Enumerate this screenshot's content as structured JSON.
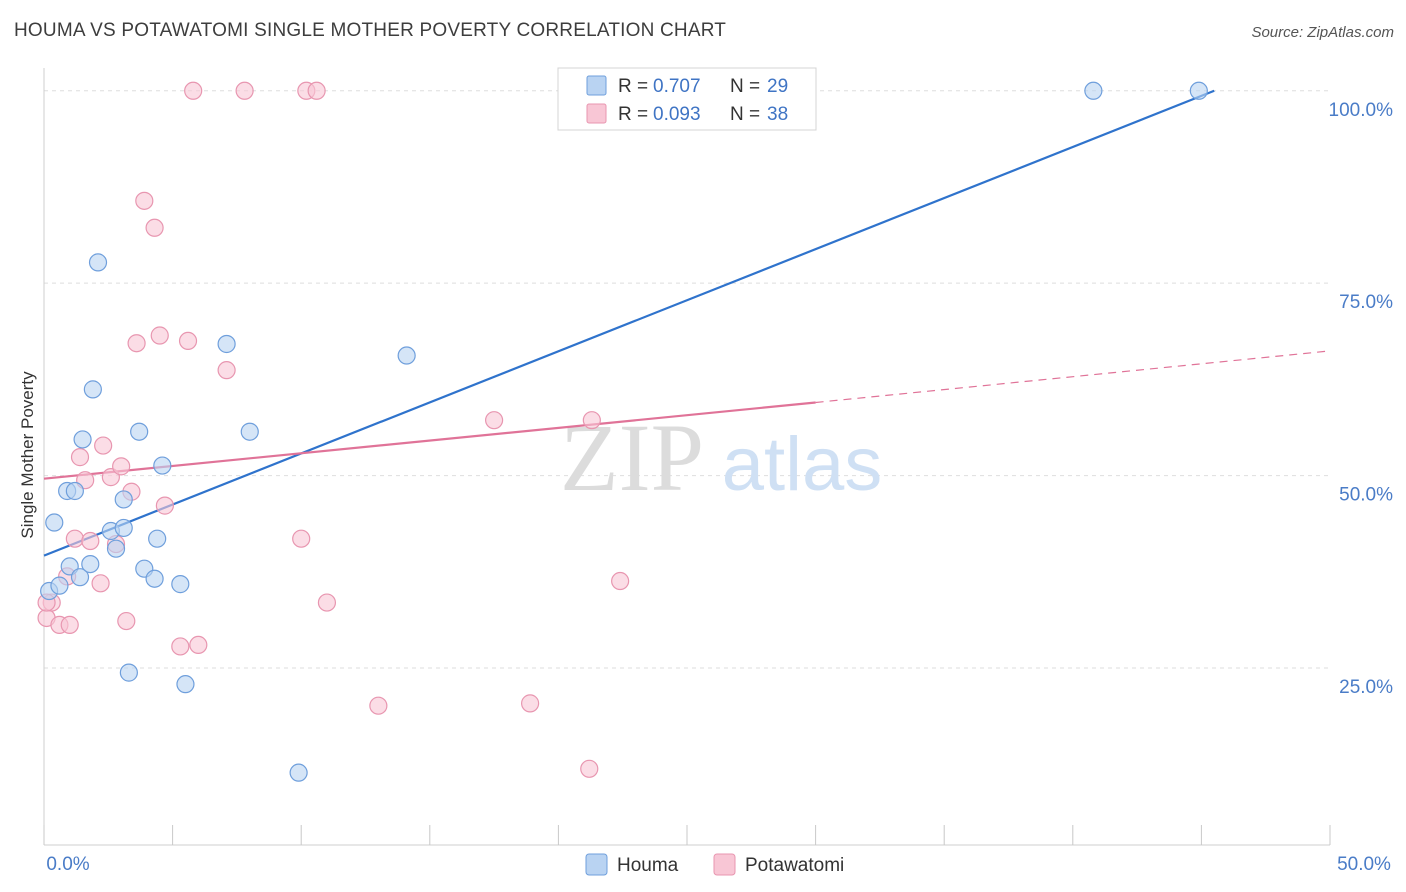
{
  "header": {
    "title": "HOUMA VS POTAWATOMI SINGLE MOTHER POVERTY CORRELATION CHART",
    "source": "Source: ZipAtlas.com"
  },
  "watermark": {
    "zip": "ZIP",
    "atlas": "atlas"
  },
  "colors": {
    "houma_fill": "#b9d3f2",
    "houma_stroke": "#6f9fdc",
    "houma_line": "#2f73cc",
    "potawatomi_fill": "#f8c6d5",
    "potawatomi_stroke": "#e896b0",
    "potawatomi_line": "#e07398"
  },
  "legend_top": {
    "rows": [
      {
        "r_label": "R =",
        "r_value": "0.707",
        "n_label": "N =",
        "n_value": "29"
      },
      {
        "r_label": "R =",
        "r_value": "0.093",
        "n_label": "N =",
        "n_value": "38"
      }
    ]
  },
  "legend_bottom": {
    "items": [
      "Houma",
      "Potawatomi"
    ]
  },
  "chart_data": {
    "type": "scatter",
    "title": "HOUMA VS POTAWATOMI SINGLE MOTHER POVERTY CORRELATION CHART",
    "xlabel": "",
    "ylabel": "Single Mother Poverty",
    "xlim": [
      0,
      50
    ],
    "ylim": [
      2,
      104
    ],
    "x_tick_labels": [
      "0.0%",
      "50.0%"
    ],
    "y_ticks": [
      25,
      50,
      75,
      100
    ],
    "y_tick_labels": [
      "25.0%",
      "50.0%",
      "75.0%",
      "100.0%"
    ],
    "grid": true,
    "legend_placement": "top-center",
    "series": [
      {
        "name": "Houma",
        "points": [
          [
            0.2,
            35
          ],
          [
            0.4,
            43.9
          ],
          [
            0.6,
            35.7
          ],
          [
            0.9,
            48
          ],
          [
            1.0,
            38.2
          ],
          [
            1.2,
            48
          ],
          [
            1.4,
            36.8
          ],
          [
            1.5,
            54.7
          ],
          [
            1.8,
            38.5
          ],
          [
            1.9,
            61.2
          ],
          [
            2.1,
            77.7
          ],
          [
            2.6,
            42.8
          ],
          [
            2.8,
            40.5
          ],
          [
            3.1,
            46.9
          ],
          [
            3.1,
            43.2
          ],
          [
            3.3,
            24.4
          ],
          [
            3.7,
            55.7
          ],
          [
            3.9,
            37.9
          ],
          [
            4.3,
            36.6
          ],
          [
            4.4,
            41.8
          ],
          [
            4.6,
            51.3
          ],
          [
            5.3,
            35.9
          ],
          [
            5.5,
            22.9
          ],
          [
            7.1,
            67.1
          ],
          [
            8.0,
            55.7
          ],
          [
            9.9,
            11.4
          ],
          [
            14.1,
            65.6
          ],
          [
            40.8,
            100
          ],
          [
            44.9,
            100
          ]
        ],
        "trend": {
          "x": [
            0,
            45.5
          ],
          "y": [
            39.6,
            100
          ],
          "dashed_to": null
        }
      },
      {
        "name": "Potawatomi",
        "points": [
          [
            0.1,
            31.5
          ],
          [
            0.3,
            33.5
          ],
          [
            0.6,
            30.6
          ],
          [
            0.9,
            36.9
          ],
          [
            1.0,
            30.6
          ],
          [
            1.2,
            41.8
          ],
          [
            1.4,
            52.4
          ],
          [
            1.6,
            49.4
          ],
          [
            1.8,
            41.5
          ],
          [
            2.2,
            36
          ],
          [
            2.3,
            53.9
          ],
          [
            2.6,
            49.8
          ],
          [
            2.8,
            41.1
          ],
          [
            3.0,
            51.2
          ],
          [
            3.2,
            31.1
          ],
          [
            3.4,
            47.9
          ],
          [
            3.6,
            67.2
          ],
          [
            3.9,
            85.7
          ],
          [
            4.3,
            82.2
          ],
          [
            4.7,
            46.1
          ],
          [
            4.5,
            68.2
          ],
          [
            5.3,
            27.8
          ],
          [
            5.6,
            67.5
          ],
          [
            5.8,
            100
          ],
          [
            6.0,
            28
          ],
          [
            7.1,
            63.7
          ],
          [
            7.8,
            100
          ],
          [
            10.0,
            41.8
          ],
          [
            10.2,
            100
          ],
          [
            10.6,
            100
          ],
          [
            11.0,
            33.5
          ],
          [
            13.0,
            20.1
          ],
          [
            17.5,
            57.2
          ],
          [
            18.9,
            20.4
          ],
          [
            21.2,
            11.9
          ],
          [
            21.3,
            57.2
          ],
          [
            22.4,
            36.3
          ],
          [
            0.1,
            33.5
          ]
        ],
        "trend": {
          "x": [
            0,
            30
          ],
          "y": [
            49.6,
            59.5
          ],
          "dashed_to": [
            50,
            66.2
          ]
        }
      }
    ]
  }
}
